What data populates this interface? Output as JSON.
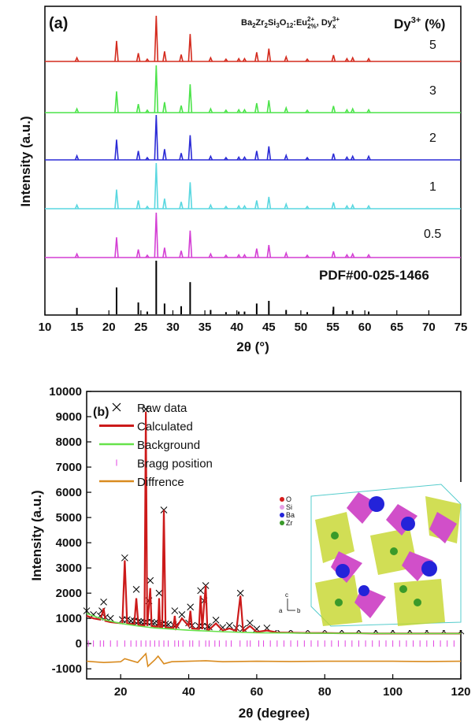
{
  "chart_data": [
    {
      "type": "stem",
      "label": "(a)",
      "xlabel": "2θ (°)",
      "ylabel": "Intensity (a.u.)",
      "formula": [
        "Ba",
        "2",
        "Zr",
        "2",
        "Si",
        "3",
        "O",
        "12",
        ":Eu",
        "2+",
        "2%",
        ", Dy",
        "3+",
        "x"
      ],
      "legend_title": [
        "Dy",
        "3+",
        " (%)"
      ],
      "xlim": [
        10,
        75
      ],
      "xticks": [
        10,
        15,
        20,
        25,
        30,
        35,
        40,
        45,
        50,
        55,
        60,
        65,
        70,
        75
      ],
      "x": [
        15.0,
        21.2,
        24.6,
        26.0,
        27.4,
        28.7,
        31.3,
        32.7,
        35.9,
        38.3,
        40.3,
        41.2,
        43.1,
        45.0,
        47.7,
        51.0,
        55.1,
        57.2,
        58.1,
        60.6
      ],
      "series": [
        {
          "name": "5",
          "color": "#d42b1e",
          "values": [
            8,
            45,
            18,
            5,
            100,
            22,
            15,
            60,
            8,
            5,
            6,
            6,
            20,
            28,
            10,
            5,
            14,
            6,
            8,
            6
          ]
        },
        {
          "name": "3",
          "color": "#4ce34a",
          "values": [
            8,
            45,
            18,
            5,
            100,
            22,
            15,
            60,
            8,
            5,
            6,
            6,
            20,
            26,
            10,
            5,
            14,
            6,
            8,
            6
          ]
        },
        {
          "name": "2",
          "color": "#2b2bd6",
          "values": [
            9,
            45,
            20,
            5,
            100,
            24,
            15,
            55,
            8,
            5,
            6,
            6,
            20,
            30,
            10,
            5,
            14,
            6,
            8,
            8
          ]
        },
        {
          "name": "1",
          "color": "#5ad7e0",
          "values": [
            8,
            42,
            18,
            5,
            100,
            22,
            15,
            58,
            8,
            5,
            6,
            6,
            18,
            26,
            10,
            5,
            14,
            6,
            8,
            6
          ]
        },
        {
          "name": "0.5",
          "color": "#d43fd4",
          "values": [
            8,
            45,
            18,
            5,
            100,
            22,
            15,
            60,
            8,
            5,
            6,
            6,
            20,
            28,
            10,
            5,
            14,
            6,
            8,
            6
          ]
        },
        {
          "name": "PDF#00-025-1466",
          "color": "#000000",
          "values": [
            12,
            50,
            22,
            5,
            100,
            20,
            15,
            60,
            8,
            4,
            5,
            5,
            20,
            25,
            8,
            4,
            14,
            6,
            7,
            5
          ]
        }
      ]
    },
    {
      "type": "line",
      "label": "(b)",
      "xlabel": "2θ (degree)",
      "ylabel": "Intensity (a.u.)",
      "xlim": [
        10,
        120
      ],
      "xticks": [
        20,
        40,
        60,
        80,
        100,
        120
      ],
      "ylim": [
        -1400,
        10000
      ],
      "yticks": [
        -1000,
        0,
        1000,
        2000,
        3000,
        4000,
        5000,
        6000,
        7000,
        8000,
        9000,
        10000
      ],
      "legend": "upper left",
      "series": [
        {
          "name": "Raw data",
          "color": "#000000",
          "marker": "x",
          "x": [
            10,
            12,
            14,
            14.5,
            15,
            15.5,
            17,
            20.5,
            21.2,
            21.9,
            23,
            24,
            24.6,
            25.2,
            26,
            27,
            27.4,
            27.8,
            28.3,
            28.7,
            29.1,
            30,
            31,
            31.3,
            31.6,
            32.2,
            32.7,
            33.2,
            34,
            35.5,
            35.9,
            36.3,
            38,
            40,
            40.5,
            41,
            43,
            43.5,
            44,
            44.5,
            45,
            45.5,
            46,
            48,
            50,
            52,
            54,
            55.2,
            56,
            58,
            60,
            63,
            66,
            70,
            75,
            80,
            85,
            90,
            95,
            100,
            105,
            110,
            115,
            120
          ],
          "values": [
            1300,
            1150,
            1100,
            1300,
            1650,
            1050,
            1000,
            950,
            3400,
            950,
            900,
            900,
            2150,
            880,
            860,
            850,
            9300,
            850,
            1700,
            2500,
            850,
            820,
            800,
            2000,
            790,
            780,
            5300,
            780,
            760,
            740,
            1300,
            730,
            1150,
            820,
            1450,
            720,
            700,
            2100,
            690,
            1700,
            2300,
            680,
            660,
            930,
            640,
            720,
            620,
            2000,
            600,
            820,
            580,
            620,
            560,
            540,
            530,
            530,
            520,
            520,
            510,
            510,
            510,
            500,
            500,
            500
          ]
        },
        {
          "name": "Calculated",
          "color": "#cc1a1a",
          "x": [
            10,
            12,
            14,
            14.5,
            15,
            15.5,
            17,
            20.5,
            21.2,
            21.9,
            23,
            24,
            24.6,
            25.2,
            26,
            27,
            27.4,
            27.8,
            28.3,
            28.7,
            29.1,
            30,
            31,
            31.3,
            31.6,
            32.2,
            32.7,
            33.2,
            34,
            35.5,
            35.9,
            36.3,
            38,
            40,
            40.5,
            41,
            43,
            43.5,
            44,
            44.5,
            45,
            45.5,
            46,
            48,
            50,
            52,
            54,
            55.2,
            56,
            58,
            60,
            63,
            66,
            70,
            75,
            80,
            85,
            90,
            95,
            100,
            105,
            110,
            115,
            120
          ],
          "values": [
            1100,
            1000,
            950,
            1150,
            1400,
            900,
            850,
            800,
            3300,
            800,
            780,
            760,
            1800,
            740,
            730,
            720,
            9200,
            700,
            1500,
            2200,
            700,
            680,
            670,
            1800,
            660,
            650,
            5300,
            640,
            630,
            620,
            1100,
            610,
            1000,
            700,
            1300,
            600,
            580,
            1900,
            570,
            1500,
            2300,
            560,
            550,
            800,
            520,
            600,
            500,
            1900,
            480,
            700,
            460,
            520,
            440,
            430,
            420,
            420,
            410,
            410,
            400,
            400,
            400,
            400,
            400,
            400
          ]
        },
        {
          "name": "Background",
          "color": "#66e24a",
          "x": [
            10,
            15,
            20,
            25,
            30,
            40,
            50,
            60,
            80,
            100,
            120
          ],
          "values": [
            1200,
            950,
            800,
            700,
            620,
            530,
            470,
            430,
            410,
            400,
            400
          ]
        },
        {
          "name": "Bragg position",
          "color": "#e040e0",
          "marker": "|",
          "x": [
            10.5,
            12,
            14,
            15,
            17,
            19,
            21.2,
            23,
            24.6,
            26,
            27.4,
            28.7,
            30,
            31.3,
            32.7,
            34,
            35.9,
            37,
            38.3,
            40.3,
            41.2,
            43.1,
            45,
            46,
            47.7,
            49,
            51,
            52.5,
            55.1,
            57.2,
            58.1,
            60.6,
            62,
            64,
            66,
            68,
            70,
            72,
            74,
            76,
            78,
            80,
            82,
            84,
            86,
            88,
            90,
            92,
            94,
            96,
            98,
            100,
            102,
            104,
            106,
            108,
            110,
            112,
            114,
            116,
            118
          ],
          "values": [
            0,
            0,
            0,
            0,
            0,
            0,
            0,
            0,
            0,
            0,
            0,
            0,
            0,
            0,
            0,
            0,
            0,
            0,
            0,
            0,
            0,
            0,
            0,
            0,
            0,
            0,
            0,
            0,
            0,
            0,
            0,
            0,
            0,
            0,
            0,
            0,
            0,
            0,
            0,
            0,
            0,
            0,
            0,
            0,
            0,
            0,
            0,
            0,
            0,
            0,
            0,
            0,
            0,
            0,
            0,
            0,
            0,
            0,
            0,
            0,
            0
          ]
        },
        {
          "name": "Diffrence",
          "color": "#d98b1f",
          "x": [
            10,
            15,
            20,
            21.2,
            25,
            27.4,
            28,
            30,
            31,
            32.7,
            35,
            40,
            45,
            50,
            60,
            70,
            80,
            90,
            100,
            110,
            120
          ],
          "values": [
            -700,
            -750,
            -720,
            -600,
            -750,
            -400,
            -900,
            -650,
            -500,
            -800,
            -720,
            -700,
            -680,
            -720,
            -700,
            -710,
            -700,
            -700,
            -700,
            -710,
            -700
          ]
        }
      ],
      "inset_labels": [
        "O",
        "Si",
        "Ba",
        "Zr",
        "c",
        "a",
        "b"
      ]
    }
  ]
}
